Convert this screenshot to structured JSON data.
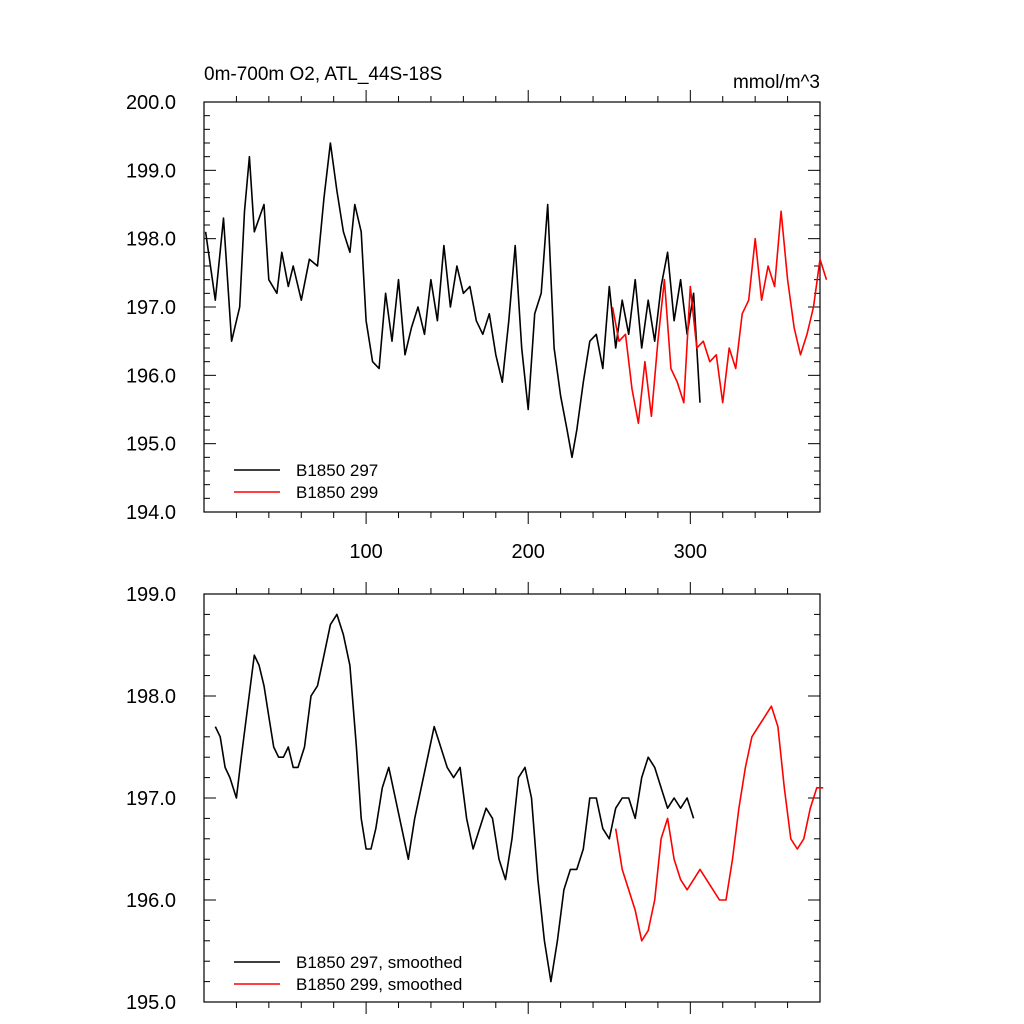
{
  "chart_data": [
    {
      "type": "line",
      "title": "0m-700m O2, ATL_44S-18S",
      "units": "mmol/m^3",
      "xlabel": "",
      "ylabel": "",
      "xlim": [
        0,
        380
      ],
      "ylim": [
        194.0,
        200.0
      ],
      "xticks": [
        100,
        200,
        300
      ],
      "xtick_labels": [
        "100",
        "200",
        "300"
      ],
      "yticks": [
        194.0,
        195.0,
        196.0,
        197.0,
        198.0,
        199.0,
        200.0
      ],
      "ytick_labels": [
        "194.0",
        "195.0",
        "196.0",
        "197.0",
        "198.0",
        "199.0",
        "200.0"
      ],
      "grid": false,
      "legend_position": "bottom-left",
      "series": [
        {
          "name": "B1850 297",
          "color": "#000000",
          "x": [
            1,
            7,
            12,
            17,
            22,
            25,
            28,
            31,
            37,
            40,
            45,
            48,
            52,
            55,
            60,
            65,
            70,
            74,
            78,
            82,
            86,
            90,
            93,
            97,
            100,
            104,
            108,
            112,
            116,
            120,
            124,
            128,
            132,
            136,
            140,
            144,
            148,
            152,
            156,
            160,
            164,
            168,
            172,
            176,
            180,
            184,
            188,
            192,
            196,
            200,
            204,
            208,
            212,
            216,
            220,
            224,
            227,
            230,
            234,
            238,
            242,
            246,
            250,
            254,
            258,
            262,
            266,
            270,
            274,
            278,
            282,
            286,
            290,
            294,
            298,
            302,
            306
          ],
          "values": [
            198.1,
            197.1,
            198.3,
            196.5,
            197.0,
            198.4,
            199.2,
            198.1,
            198.5,
            197.4,
            197.2,
            197.8,
            197.3,
            197.6,
            197.1,
            197.7,
            197.6,
            198.6,
            199.4,
            198.7,
            198.1,
            197.8,
            198.5,
            198.1,
            196.8,
            196.2,
            196.1,
            197.2,
            196.5,
            197.4,
            196.3,
            196.7,
            197.0,
            196.6,
            197.4,
            196.8,
            197.9,
            197.0,
            197.6,
            197.2,
            197.3,
            196.8,
            196.6,
            196.9,
            196.3,
            195.9,
            196.8,
            197.9,
            196.4,
            195.5,
            196.9,
            197.2,
            198.5,
            196.4,
            195.7,
            195.2,
            194.8,
            195.2,
            195.9,
            196.5,
            196.6,
            196.1,
            197.3,
            196.4,
            197.1,
            196.6,
            197.4,
            196.4,
            197.1,
            196.5,
            197.3,
            197.8,
            196.8,
            197.4,
            196.6,
            197.2,
            195.6
          ]
        },
        {
          "name": "B1850 299",
          "color": "#ff0000",
          "x": [
            252,
            256,
            260,
            264,
            268,
            272,
            276,
            280,
            284,
            288,
            292,
            296,
            300,
            304,
            308,
            312,
            316,
            320,
            324,
            328,
            332,
            336,
            340,
            344,
            348,
            352,
            356,
            360,
            364,
            368,
            372,
            376,
            380,
            384
          ],
          "values": [
            197.0,
            196.5,
            196.6,
            195.8,
            195.3,
            196.2,
            195.4,
            196.5,
            197.4,
            196.1,
            195.9,
            195.6,
            197.3,
            196.4,
            196.5,
            196.2,
            196.3,
            195.6,
            196.4,
            196.1,
            196.9,
            197.1,
            198.0,
            197.1,
            197.6,
            197.3,
            198.4,
            197.4,
            196.7,
            196.3,
            196.6,
            197.0,
            197.7,
            197.4
          ]
        }
      ]
    },
    {
      "type": "line",
      "title": "",
      "xlabel": "",
      "ylabel": "",
      "xlim": [
        0,
        380
      ],
      "ylim": [
        195.0,
        199.0
      ],
      "xticks": [
        100,
        200,
        300
      ],
      "yticks": [
        195.0,
        196.0,
        197.0,
        198.0,
        199.0
      ],
      "ytick_labels": [
        "195.0",
        "196.0",
        "197.0",
        "198.0",
        "199.0"
      ],
      "grid": false,
      "legend_position": "bottom-left",
      "series": [
        {
          "name": "B1850 297, smoothed",
          "color": "#000000",
          "x": [
            7,
            10,
            13,
            16,
            20,
            23,
            27,
            31,
            34,
            37,
            40,
            43,
            46,
            49,
            52,
            55,
            58,
            62,
            66,
            70,
            74,
            78,
            82,
            86,
            90,
            94,
            97,
            100,
            103,
            106,
            110,
            114,
            118,
            122,
            126,
            130,
            134,
            138,
            142,
            146,
            150,
            154,
            158,
            162,
            166,
            170,
            174,
            178,
            182,
            186,
            190,
            194,
            198,
            202,
            206,
            210,
            214,
            218,
            222,
            226,
            230,
            234,
            238,
            242,
            246,
            250,
            254,
            258,
            262,
            266,
            270,
            274,
            278,
            282,
            286,
            290,
            294,
            298,
            302
          ],
          "values": [
            197.7,
            197.6,
            197.3,
            197.2,
            197.0,
            197.4,
            197.9,
            198.4,
            198.3,
            198.1,
            197.8,
            197.5,
            197.4,
            197.4,
            197.5,
            197.3,
            197.3,
            197.5,
            198.0,
            198.1,
            198.4,
            198.7,
            198.8,
            198.6,
            198.3,
            197.5,
            196.8,
            196.5,
            196.5,
            196.7,
            197.1,
            197.3,
            197.0,
            196.7,
            196.4,
            196.8,
            197.1,
            197.4,
            197.7,
            197.5,
            197.3,
            197.2,
            197.3,
            196.8,
            196.5,
            196.7,
            196.9,
            196.8,
            196.4,
            196.2,
            196.6,
            197.2,
            197.3,
            197.0,
            196.2,
            195.6,
            195.2,
            195.6,
            196.1,
            196.3,
            196.3,
            196.5,
            197.0,
            197.0,
            196.7,
            196.6,
            196.9,
            197.0,
            197.0,
            196.8,
            197.2,
            197.4,
            197.3,
            197.1,
            196.9,
            197.0,
            196.9,
            197.0,
            196.8
          ]
        },
        {
          "name": "B1850 299, smoothed",
          "color": "#ff0000",
          "x": [
            254,
            258,
            262,
            266,
            270,
            274,
            278,
            282,
            286,
            290,
            294,
            298,
            302,
            306,
            310,
            314,
            318,
            322,
            326,
            330,
            334,
            338,
            342,
            346,
            350,
            354,
            358,
            362,
            366,
            370,
            374,
            378,
            382
          ],
          "values": [
            196.7,
            196.3,
            196.1,
            195.9,
            195.6,
            195.7,
            196.0,
            196.6,
            196.8,
            196.4,
            196.2,
            196.1,
            196.2,
            196.3,
            196.2,
            196.1,
            196.0,
            196.0,
            196.4,
            196.9,
            197.3,
            197.6,
            197.7,
            197.8,
            197.9,
            197.7,
            197.1,
            196.6,
            196.5,
            196.6,
            196.9,
            197.1,
            197.1
          ]
        }
      ]
    }
  ]
}
